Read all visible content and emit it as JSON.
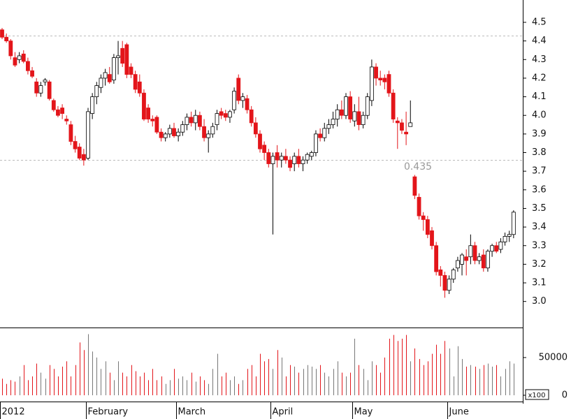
{
  "chart_data": {
    "type": "candlestick",
    "categories": [
      "2012",
      null,
      null,
      null,
      null,
      null,
      null,
      null,
      null,
      null,
      null,
      null,
      null,
      null,
      null,
      null,
      null,
      null,
      null,
      null,
      "February",
      null,
      null,
      null,
      null,
      null,
      null,
      null,
      null,
      null,
      null,
      null,
      null,
      null,
      null,
      null,
      null,
      null,
      null,
      null,
      null,
      "March",
      null,
      null,
      null,
      null,
      null,
      null,
      null,
      null,
      null,
      null,
      null,
      null,
      null,
      null,
      null,
      null,
      null,
      null,
      null,
      null,
      null,
      "April",
      null,
      null,
      null,
      null,
      null,
      null,
      null,
      null,
      null,
      null,
      null,
      null,
      null,
      null,
      null,
      null,
      null,
      null,
      "May",
      null,
      null,
      null,
      null,
      null,
      null,
      null,
      null,
      null,
      null,
      null,
      null,
      null,
      null,
      null,
      null,
      null,
      null,
      null,
      null,
      null,
      "June",
      null,
      null,
      null,
      null,
      null,
      null,
      null,
      null,
      null,
      null,
      null,
      null,
      null,
      null,
      null
    ],
    "open": [
      4.46,
      4.42,
      4.4,
      4.31,
      4.3,
      4.33,
      4.29,
      4.24,
      4.18,
      4.12,
      4.18,
      4.18,
      4.08,
      4.03,
      4.04,
      3.98,
      3.95,
      3.86,
      3.83,
      3.79,
      3.77,
      4.01,
      4.1,
      4.15,
      4.2,
      4.22,
      4.19,
      4.31,
      4.36,
      4.38,
      4.26,
      4.22,
      4.18,
      4.12,
      4.04,
      3.98,
      3.99,
      3.91,
      3.88,
      3.9,
      3.93,
      3.89,
      3.91,
      3.95,
      3.99,
      3.96,
      4.0,
      3.94,
      3.88,
      3.9,
      3.95,
      4.02,
      4.01,
      3.99,
      4.03,
      4.2,
      4.08,
      4.09,
      4.03,
      3.96,
      3.9,
      3.84,
      3.8,
      3.74,
      3.8,
      3.76,
      3.78,
      3.76,
      3.74,
      3.78,
      3.74,
      3.76,
      3.78,
      3.8,
      3.9,
      3.88,
      3.93,
      3.95,
      3.98,
      4.03,
      4.0,
      4.1,
      3.97,
      4.02,
      3.95,
      4.0,
      4.08,
      4.26,
      4.2,
      4.2,
      4.22,
      4.12,
      3.97,
      3.96,
      3.91,
      3.94,
      3.67,
      3.56,
      3.46,
      3.44,
      3.38,
      3.3,
      3.17,
      3.14,
      3.06,
      3.12,
      3.18,
      3.2,
      3.24,
      3.24,
      3.3,
      3.22,
      3.25,
      3.18,
      3.27,
      3.3,
      3.28,
      3.32,
      3.35,
      3.36
    ],
    "high": [
      4.47,
      4.44,
      4.41,
      4.34,
      4.34,
      4.35,
      4.31,
      4.26,
      4.2,
      4.18,
      4.2,
      4.19,
      4.09,
      4.05,
      4.06,
      4.0,
      3.97,
      3.89,
      3.85,
      3.82,
      4.04,
      4.12,
      4.18,
      4.22,
      4.25,
      4.26,
      4.33,
      4.4,
      4.4,
      4.39,
      4.28,
      4.24,
      4.22,
      4.14,
      4.06,
      4.0,
      4.0,
      3.93,
      3.91,
      3.95,
      3.96,
      3.93,
      3.97,
      4.01,
      4.02,
      4.03,
      4.02,
      3.98,
      3.92,
      3.96,
      4.03,
      4.04,
      4.03,
      4.03,
      4.15,
      4.22,
      4.12,
      4.11,
      4.05,
      3.99,
      3.92,
      3.86,
      3.82,
      3.8,
      3.84,
      3.8,
      3.82,
      3.78,
      3.8,
      3.82,
      3.78,
      3.8,
      3.81,
      3.92,
      3.93,
      3.96,
      3.98,
      4.02,
      4.06,
      4.08,
      4.12,
      4.13,
      4.06,
      4.1,
      4.02,
      4.12,
      4.3,
      4.28,
      4.24,
      4.22,
      4.24,
      4.14,
      3.99,
      3.98,
      4.02,
      4.08,
      3.68,
      3.58,
      3.48,
      3.46,
      3.4,
      3.32,
      3.19,
      3.16,
      3.14,
      3.18,
      3.24,
      3.26,
      3.28,
      3.36,
      3.32,
      3.26,
      3.28,
      3.28,
      3.31,
      3.32,
      3.34,
      3.37,
      3.38,
      3.49
    ],
    "low": [
      4.41,
      4.39,
      4.3,
      4.26,
      4.28,
      4.28,
      4.22,
      4.2,
      4.1,
      4.1,
      4.16,
      4.08,
      4.02,
      3.99,
      3.98,
      3.95,
      3.84,
      3.8,
      3.76,
      3.73,
      3.76,
      3.98,
      4.06,
      4.12,
      4.16,
      4.17,
      4.17,
      4.22,
      4.26,
      4.2,
      4.2,
      4.12,
      4.1,
      3.97,
      3.96,
      3.94,
      3.9,
      3.86,
      3.86,
      3.88,
      3.88,
      3.86,
      3.89,
      3.92,
      3.94,
      3.92,
      3.92,
      3.86,
      3.8,
      3.88,
      3.92,
      3.98,
      3.97,
      3.96,
      4.01,
      4.06,
      4.04,
      4.01,
      3.94,
      3.88,
      3.8,
      3.76,
      3.72,
      3.36,
      3.72,
      3.72,
      3.74,
      3.7,
      3.7,
      3.72,
      3.7,
      3.74,
      3.76,
      3.78,
      3.86,
      3.86,
      3.9,
      3.93,
      3.94,
      3.98,
      3.98,
      3.96,
      3.94,
      3.92,
      3.93,
      3.98,
      4.05,
      4.16,
      4.16,
      4.14,
      4.1,
      3.96,
      3.82,
      3.9,
      3.84,
      3.94,
      3.55,
      3.44,
      3.38,
      3.34,
      3.28,
      3.14,
      3.08,
      3.02,
      3.04,
      3.1,
      3.16,
      3.14,
      3.14,
      3.2,
      3.2,
      3.2,
      3.16,
      3.16,
      3.24,
      3.26,
      3.26,
      3.3,
      3.32,
      3.34
    ],
    "close": [
      4.42,
      4.4,
      4.32,
      4.27,
      4.32,
      4.29,
      4.24,
      4.21,
      4.12,
      4.16,
      4.19,
      4.09,
      4.03,
      4.0,
      4.01,
      3.97,
      3.86,
      3.82,
      3.77,
      3.76,
      4.02,
      4.1,
      4.16,
      4.2,
      4.23,
      4.18,
      4.31,
      4.32,
      4.28,
      4.22,
      4.22,
      4.14,
      4.12,
      3.98,
      3.98,
      3.97,
      3.91,
      3.88,
      3.9,
      3.93,
      3.89,
      3.91,
      3.95,
      3.99,
      3.96,
      4.0,
      3.94,
      3.88,
      3.9,
      3.94,
      4.01,
      4.0,
      3.99,
      4.02,
      4.13,
      4.08,
      4.1,
      4.03,
      3.96,
      3.9,
      3.82,
      3.8,
      3.74,
      3.78,
      3.76,
      3.78,
      3.76,
      3.72,
      3.78,
      3.74,
      3.76,
      3.79,
      3.8,
      3.9,
      3.88,
      3.93,
      3.95,
      3.98,
      4.03,
      4.0,
      4.1,
      3.98,
      4.02,
      3.95,
      4.0,
      4.1,
      4.26,
      4.2,
      4.19,
      4.18,
      4.12,
      3.98,
      3.96,
      3.92,
      3.9,
      3.96,
      3.57,
      3.46,
      3.44,
      3.36,
      3.3,
      3.16,
      3.14,
      3.06,
      3.12,
      3.17,
      3.22,
      3.25,
      3.22,
      3.3,
      3.22,
      3.24,
      3.18,
      3.27,
      3.3,
      3.27,
      3.32,
      3.35,
      3.36,
      3.48
    ],
    "volume": [
      22000,
      15000,
      20000,
      18000,
      25000,
      40000,
      20000,
      25000,
      42000,
      30000,
      22000,
      40000,
      35000,
      25000,
      38000,
      45000,
      25000,
      40000,
      70000,
      60000,
      81000,
      58000,
      50000,
      35000,
      45000,
      30000,
      20000,
      45000,
      30000,
      25000,
      40000,
      32000,
      25000,
      30000,
      20000,
      35000,
      20000,
      25000,
      15000,
      20000,
      35000,
      22000,
      25000,
      20000,
      30000,
      18000,
      25000,
      20000,
      15000,
      35000,
      55000,
      25000,
      30000,
      20000,
      25000,
      15000,
      20000,
      35000,
      40000,
      25000,
      55000,
      45000,
      48000,
      35000,
      60000,
      50000,
      25000,
      40000,
      38000,
      30000,
      35000,
      40000,
      38000,
      35000,
      40000,
      30000,
      25000,
      35000,
      45000,
      30000,
      25000,
      30000,
      75000,
      40000,
      35000,
      20000,
      45000,
      40000,
      30000,
      50000,
      75000,
      80000,
      72000,
      75000,
      80000,
      45000,
      62000,
      48000,
      40000,
      45000,
      55000,
      67000,
      55000,
      72000,
      62000,
      25000,
      65000,
      48000,
      38000,
      40000,
      38000,
      35000,
      40000,
      42000,
      38000,
      40000,
      25000,
      35000,
      45000,
      42000
    ],
    "up_color": "#ffffff",
    "down_color": "#e3151a",
    "volume_up_color": "#777777",
    "volume_down_color": "#e3151a",
    "ylim": [
      2.86,
      4.62
    ],
    "yticks": [
      {
        "value": 3,
        "label": "3.0"
      },
      3.1,
      3.2,
      3.3,
      3.4,
      3.5,
      3.6,
      3.7,
      3.8,
      3.9,
      {
        "value": 4,
        "label": "4.0"
      },
      4.1,
      4.2,
      4.3,
      4.4,
      4.5
    ],
    "volume_lim": [
      0,
      88900
    ],
    "volume_ticks": [
      0,
      50000
    ],
    "volume_unit": "x100",
    "reference_lines": [
      4.43,
      3.76
    ],
    "annotation": "0.435"
  }
}
